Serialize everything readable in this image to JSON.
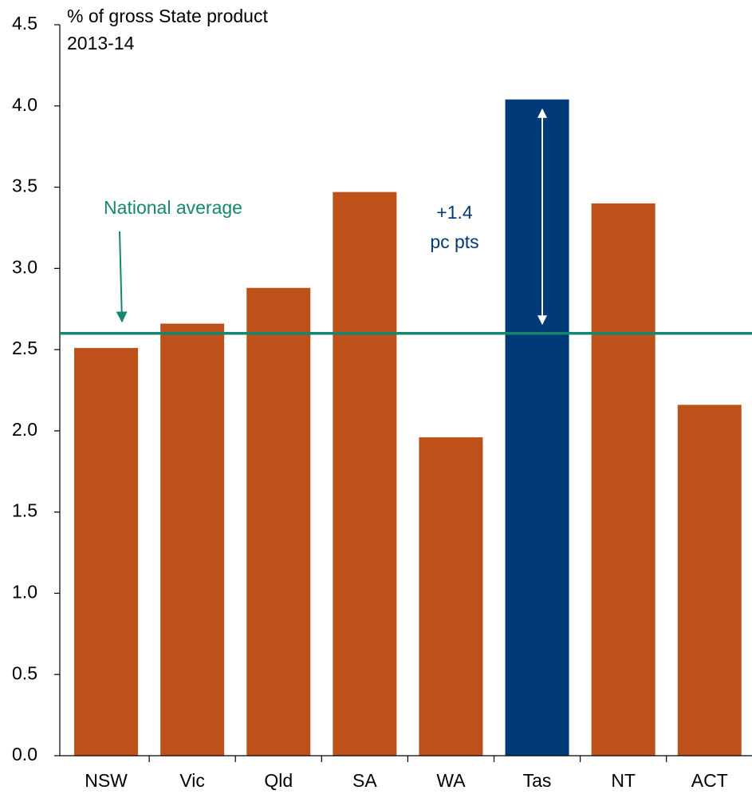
{
  "chart_data": {
    "type": "bar",
    "y_label": [
      "% of gross State product",
      "2013-14"
    ],
    "categories": [
      "NSW",
      "Vic",
      "Qld",
      "SA",
      "WA",
      "Tas",
      "NT",
      "ACT"
    ],
    "values": [
      2.51,
      2.66,
      2.88,
      3.47,
      1.96,
      4.04,
      3.4,
      2.16
    ],
    "colors": [
      "#bd5119",
      "#bd5119",
      "#bd5119",
      "#bd5119",
      "#bd5119",
      "#003a78",
      "#bd5119",
      "#bd5119"
    ],
    "ylim": [
      0,
      4.5
    ],
    "yticks": [
      {
        "value": 0,
        "label": "0.0"
      },
      0.5,
      {
        "value": 1,
        "label": "1.0"
      },
      1.5,
      {
        "value": 2,
        "label": "2.0"
      },
      2.5,
      {
        "value": 3,
        "label": "3.0"
      },
      3.5,
      {
        "value": 4,
        "label": "4.0"
      },
      4.5
    ],
    "reference_line": {
      "label": "National average",
      "value": 2.6,
      "color": "#13876f"
    },
    "annotation": {
      "lines": [
        "+1.4",
        "pc pts"
      ],
      "color": "#003a78"
    }
  }
}
